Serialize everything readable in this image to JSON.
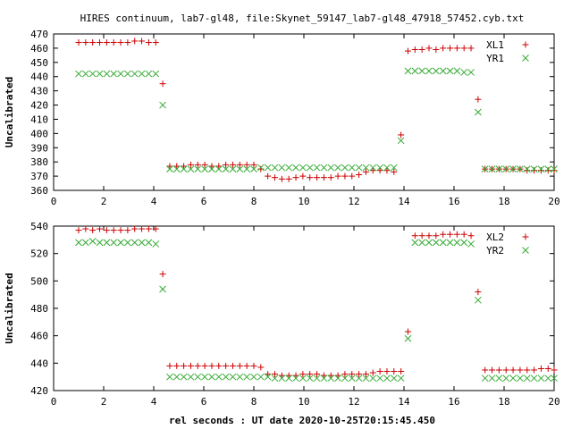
{
  "figure": {
    "title": "HIRES continuum, lab7-gl48, file:Skynet_59147_lab7-gl48_47918_57452.cyb.txt",
    "xlabel": "rel seconds : UT date 2020-10-25T20:15:45.450"
  },
  "colors": {
    "series_a": "#cc0000",
    "series_b": "#33aa33",
    "axis": "#000000"
  },
  "chart_data": [
    {
      "type": "scatter",
      "ylabel": "Uncalibrated",
      "xlim": [
        0,
        20
      ],
      "ylim": [
        360,
        470
      ],
      "xticks": [
        0,
        2,
        4,
        6,
        8,
        10,
        12,
        14,
        16,
        18,
        20
      ],
      "yticks": [
        360,
        370,
        380,
        390,
        400,
        410,
        420,
        430,
        440,
        450,
        460,
        470
      ],
      "legend_position": "top-right",
      "series": [
        {
          "name": "XL1",
          "marker": "plus",
          "color": "#cc0000",
          "x": [
            1.0,
            1.28,
            1.56,
            1.84,
            2.12,
            2.4,
            2.68,
            2.96,
            3.24,
            3.52,
            3.8,
            4.08,
            4.36,
            4.64,
            4.92,
            5.2,
            5.48,
            5.76,
            6.04,
            6.32,
            6.6,
            6.88,
            7.16,
            7.44,
            7.72,
            8.0,
            8.28,
            8.56,
            8.84,
            9.12,
            9.4,
            9.68,
            9.96,
            10.24,
            10.52,
            10.8,
            11.08,
            11.36,
            11.64,
            11.92,
            12.2,
            12.48,
            12.76,
            13.04,
            13.32,
            13.6,
            13.88,
            14.16,
            14.44,
            14.72,
            15.0,
            15.28,
            15.56,
            15.84,
            16.12,
            16.4,
            16.68,
            16.96,
            17.24,
            17.52,
            17.8,
            18.08,
            18.36,
            18.64,
            18.92,
            19.2,
            19.48,
            19.76,
            20.0
          ],
          "y": [
            464,
            464,
            464,
            464,
            464,
            464,
            464,
            464,
            465,
            465,
            464,
            464,
            435,
            377,
            377,
            377,
            378,
            378,
            378,
            377,
            377,
            378,
            378,
            378,
            378,
            378,
            375,
            370,
            369,
            368,
            368,
            369,
            370,
            369,
            369,
            369,
            369,
            370,
            370,
            370,
            371,
            373,
            374,
            374,
            374,
            373,
            399,
            458,
            459,
            459,
            460,
            459,
            460,
            460,
            460,
            460,
            460,
            424,
            375,
            375,
            375,
            375,
            375,
            375,
            374,
            374,
            374,
            374,
            374
          ]
        },
        {
          "name": "YR1",
          "marker": "cross",
          "color": "#33aa33",
          "x": [
            1.0,
            1.28,
            1.56,
            1.84,
            2.12,
            2.4,
            2.68,
            2.96,
            3.24,
            3.52,
            3.8,
            4.08,
            4.36,
            4.64,
            4.92,
            5.2,
            5.48,
            5.76,
            6.04,
            6.32,
            6.6,
            6.88,
            7.16,
            7.44,
            7.72,
            8.0,
            8.28,
            8.56,
            8.84,
            9.12,
            9.4,
            9.68,
            9.96,
            10.24,
            10.52,
            10.8,
            11.08,
            11.36,
            11.64,
            11.92,
            12.2,
            12.48,
            12.76,
            13.04,
            13.32,
            13.6,
            13.88,
            14.16,
            14.44,
            14.72,
            15.0,
            15.28,
            15.56,
            15.84,
            16.12,
            16.4,
            16.68,
            16.96,
            17.24,
            17.52,
            17.8,
            18.08,
            18.36,
            18.64,
            18.92,
            19.2,
            19.48,
            19.76,
            20.0
          ],
          "y": [
            442,
            442,
            442,
            442,
            442,
            442,
            442,
            442,
            442,
            442,
            442,
            442,
            420,
            375,
            375,
            375,
            375,
            375,
            375,
            375,
            375,
            375,
            375,
            375,
            375,
            375,
            376,
            376,
            376,
            376,
            376,
            376,
            376,
            376,
            376,
            376,
            376,
            376,
            376,
            376,
            376,
            376,
            376,
            376,
            376,
            376,
            395,
            444,
            444,
            444,
            444,
            444,
            444,
            444,
            444,
            443,
            443,
            415,
            375,
            375,
            375,
            375,
            375,
            375,
            375,
            375,
            375,
            375,
            375
          ]
        }
      ]
    },
    {
      "type": "scatter",
      "ylabel": "Uncalibrated",
      "xlim": [
        0,
        20
      ],
      "ylim": [
        420,
        540
      ],
      "xticks": [
        0,
        2,
        4,
        6,
        8,
        10,
        12,
        14,
        16,
        18,
        20
      ],
      "yticks": [
        420,
        440,
        460,
        480,
        500,
        520,
        540
      ],
      "legend_position": "top-right",
      "series": [
        {
          "name": "XL2",
          "marker": "plus",
          "color": "#cc0000",
          "x": [
            1.0,
            1.28,
            1.56,
            1.84,
            2.12,
            2.4,
            2.68,
            2.96,
            3.24,
            3.52,
            3.8,
            4.08,
            4.36,
            4.64,
            4.92,
            5.2,
            5.48,
            5.76,
            6.04,
            6.32,
            6.6,
            6.88,
            7.16,
            7.44,
            7.72,
            8.0,
            8.28,
            8.56,
            8.84,
            9.12,
            9.4,
            9.68,
            9.96,
            10.24,
            10.52,
            10.8,
            11.08,
            11.36,
            11.64,
            11.92,
            12.2,
            12.48,
            12.76,
            13.04,
            13.32,
            13.6,
            13.88,
            14.16,
            14.44,
            14.72,
            15.0,
            15.28,
            15.56,
            15.84,
            16.12,
            16.4,
            16.68,
            16.96,
            17.24,
            17.52,
            17.8,
            18.08,
            18.36,
            18.64,
            18.92,
            19.2,
            19.48,
            19.76,
            20.0
          ],
          "y": [
            537,
            538,
            537,
            538,
            537,
            537,
            537,
            537,
            538,
            538,
            538,
            538,
            505,
            438,
            438,
            438,
            438,
            438,
            438,
            438,
            438,
            438,
            438,
            438,
            438,
            438,
            437,
            432,
            432,
            431,
            431,
            431,
            432,
            432,
            432,
            431,
            431,
            431,
            432,
            432,
            432,
            432,
            433,
            434,
            434,
            434,
            434,
            463,
            533,
            533,
            533,
            533,
            534,
            534,
            534,
            534,
            533,
            492,
            435,
            435,
            435,
            435,
            435,
            435,
            435,
            435,
            436,
            436,
            435
          ]
        },
        {
          "name": "YR2",
          "marker": "cross",
          "color": "#33aa33",
          "x": [
            1.0,
            1.28,
            1.56,
            1.84,
            2.12,
            2.4,
            2.68,
            2.96,
            3.24,
            3.52,
            3.8,
            4.08,
            4.36,
            4.64,
            4.92,
            5.2,
            5.48,
            5.76,
            6.04,
            6.32,
            6.6,
            6.88,
            7.16,
            7.44,
            7.72,
            8.0,
            8.28,
            8.56,
            8.84,
            9.12,
            9.4,
            9.68,
            9.96,
            10.24,
            10.52,
            10.8,
            11.08,
            11.36,
            11.64,
            11.92,
            12.2,
            12.48,
            12.76,
            13.04,
            13.32,
            13.6,
            13.88,
            14.16,
            14.44,
            14.72,
            15.0,
            15.28,
            15.56,
            15.84,
            16.12,
            16.4,
            16.68,
            16.96,
            17.24,
            17.52,
            17.8,
            18.08,
            18.36,
            18.64,
            18.92,
            19.2,
            19.48,
            19.76,
            20.0
          ],
          "y": [
            528,
            528,
            529,
            528,
            528,
            528,
            528,
            528,
            528,
            528,
            528,
            527,
            494,
            430,
            430,
            430,
            430,
            430,
            430,
            430,
            430,
            430,
            430,
            430,
            430,
            430,
            430,
            430,
            429,
            429,
            429,
            429,
            429,
            429,
            429,
            429,
            429,
            429,
            429,
            429,
            429,
            429,
            429,
            429,
            429,
            429,
            429,
            458,
            528,
            528,
            528,
            528,
            528,
            528,
            528,
            528,
            527,
            486,
            429,
            429,
            429,
            429,
            429,
            429,
            429,
            429,
            429,
            429,
            429
          ]
        }
      ]
    }
  ]
}
